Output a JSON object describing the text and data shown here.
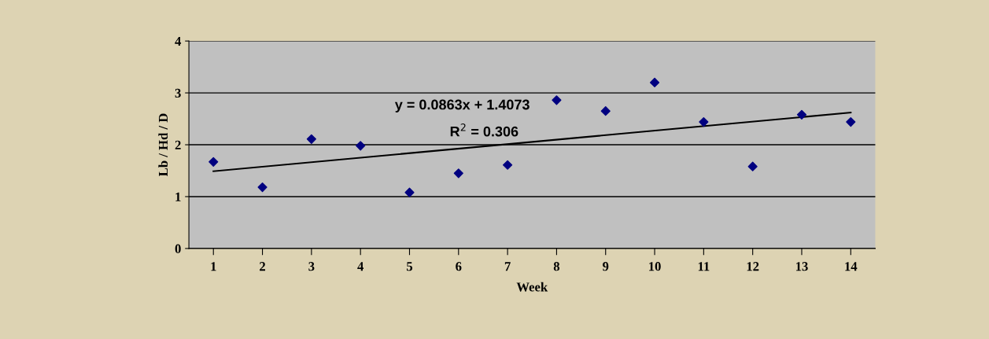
{
  "chart_data": {
    "type": "scatter",
    "xlabel": "Week",
    "ylabel": "Lb / Hd / D",
    "x": [
      1,
      2,
      3,
      4,
      5,
      6,
      7,
      8,
      9,
      10,
      11,
      12,
      13,
      14
    ],
    "series": [
      {
        "type": "scatter",
        "color": "#000080",
        "marker": "diamond",
        "values": [
          1.67,
          1.18,
          2.11,
          1.98,
          1.08,
          1.45,
          1.61,
          2.86,
          2.65,
          3.2,
          2.44,
          1.58,
          2.58,
          2.44
        ]
      },
      {
        "type": "line",
        "color": "#000000",
        "x": [
          1,
          14
        ],
        "values": [
          1.49,
          2.62
        ]
      }
    ],
    "xlim": [
      0.5,
      14.5
    ],
    "xticks": [
      1,
      2,
      3,
      4,
      5,
      6,
      7,
      8,
      9,
      10,
      11,
      12,
      13,
      14
    ],
    "ylim": [
      0,
      4
    ],
    "yticks": [
      0,
      1,
      2,
      3,
      4
    ],
    "grid": "y",
    "legend": false,
    "annotations": [
      "y = 0.0863x + 1.4073",
      "R$^{2}$ = 0.306"
    ]
  }
}
